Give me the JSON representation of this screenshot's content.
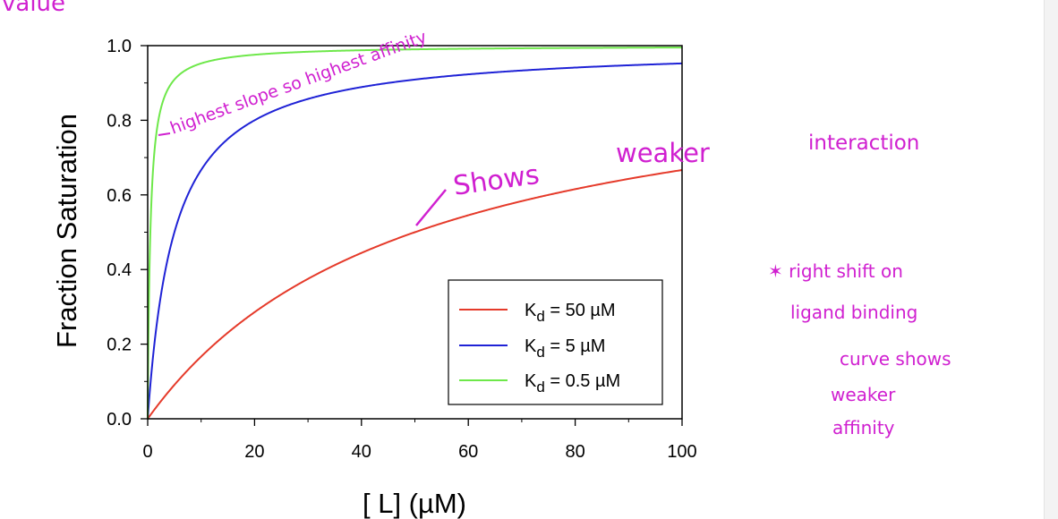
{
  "chart_data": {
    "type": "line",
    "title": "",
    "xlabel": "[ L] (µM)",
    "ylabel": "Fraction Saturation",
    "xlim": [
      0,
      100
    ],
    "ylim": [
      0,
      1.0
    ],
    "x_ticks": [
      "0",
      "20",
      "40",
      "60",
      "80",
      "100"
    ],
    "y_ticks": [
      "0.0",
      "0.2",
      "0.4",
      "0.6",
      "0.8",
      "1.0"
    ],
    "grid": false,
    "legend_position": "bottom-right",
    "series": [
      {
        "name": "K",
        "sub": "d",
        "suffix": " = 50 µM",
        "color": "#e53a2a",
        "kd": 50,
        "x": [
          0,
          10,
          20,
          30,
          40,
          50,
          60,
          70,
          80,
          90,
          100
        ],
        "y": [
          0,
          0.167,
          0.286,
          0.375,
          0.444,
          0.5,
          0.545,
          0.583,
          0.615,
          0.643,
          0.667
        ]
      },
      {
        "name": "K",
        "sub": "d",
        "suffix": " = 5 µM",
        "color": "#1f22d6",
        "kd": 5,
        "x": [
          0,
          5,
          10,
          20,
          40,
          60,
          80,
          100
        ],
        "y": [
          0,
          0.5,
          0.667,
          0.8,
          0.889,
          0.923,
          0.941,
          0.952
        ]
      },
      {
        "name": "K",
        "sub": "d",
        "suffix": " = 0.5 µM",
        "color": "#6ee84a",
        "kd": 0.5,
        "x": [
          0,
          0.5,
          1,
          2,
          5,
          10,
          20,
          50,
          100
        ],
        "y": [
          0,
          0.5,
          0.667,
          0.8,
          0.909,
          0.952,
          0.976,
          0.99,
          0.995
        ]
      }
    ]
  },
  "annotations": {
    "top_fragment": "value",
    "highest_slope": "highest slope so highest affinity",
    "shows": "Shows",
    "weaker": "weaker",
    "interaction": "interaction",
    "right_shift_1": "✶ right shift on",
    "right_shift_2": "ligand binding",
    "right_shift_3": "curve shows",
    "right_shift_4": "weaker",
    "right_shift_5": "affinity"
  }
}
